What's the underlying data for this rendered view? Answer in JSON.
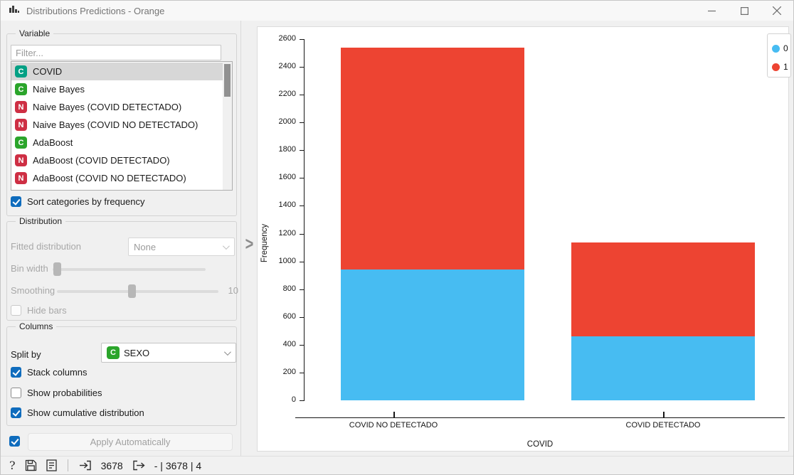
{
  "window": {
    "title": "Distributions Predictions - Orange"
  },
  "variable_panel": {
    "group_title": "Variable",
    "filter_placeholder": "Filter...",
    "items": [
      {
        "icon": "C",
        "icon_color": "#03a084",
        "label": "COVID",
        "selected": true
      },
      {
        "icon": "C",
        "icon_color": "#2ba52b",
        "label": "Naive Bayes",
        "selected": false
      },
      {
        "icon": "N",
        "icon_color": "#ce2f44",
        "label": "Naive Bayes (COVID DETECTADO)",
        "selected": false
      },
      {
        "icon": "N",
        "icon_color": "#ce2f44",
        "label": "Naive Bayes (COVID NO DETECTADO)",
        "selected": false
      },
      {
        "icon": "C",
        "icon_color": "#2ba52b",
        "label": "AdaBoost",
        "selected": false
      },
      {
        "icon": "N",
        "icon_color": "#ce2f44",
        "label": "AdaBoost (COVID DETECTADO)",
        "selected": false
      },
      {
        "icon": "N",
        "icon_color": "#ce2f44",
        "label": "AdaBoost (COVID NO DETECTADO)",
        "selected": false
      }
    ],
    "sort_checkbox": {
      "label": "Sort categories by frequency",
      "checked": true
    }
  },
  "distribution_panel": {
    "group_title": "Distribution",
    "fitted_label": "Fitted distribution",
    "fitted_value": "None",
    "bin_width_label": "Bin width",
    "smoothing_label": "Smoothing",
    "smoothing_value": "10",
    "hide_bars": {
      "label": "Hide bars",
      "checked": false
    }
  },
  "columns_panel": {
    "group_title": "Columns",
    "split_by_label": "Split by",
    "split_by_icon": "C",
    "split_by_icon_color": "#2ba52b",
    "split_by_value": "SEXO",
    "checkboxes": [
      {
        "label": "Stack columns",
        "checked": true
      },
      {
        "label": "Show probabilities",
        "checked": false
      },
      {
        "label": "Show cumulative distribution",
        "checked": true
      }
    ]
  },
  "apply": {
    "label": "Apply Automatically",
    "checked": true
  },
  "splitter": {
    "glyph": ">"
  },
  "status_bar": {
    "help_glyph": "?",
    "input_count": "3678",
    "output_summary": "- | 3678 | 4"
  },
  "chart_data": {
    "type": "bar",
    "stacked": true,
    "categories": [
      "COVID NO DETECTADO",
      "COVID DETECTADO"
    ],
    "series": [
      {
        "name": "0",
        "color": "#47bcf2",
        "values": [
          940,
          460
        ]
      },
      {
        "name": "1",
        "color": "#ed4432",
        "values": [
          1600,
          675
        ]
      }
    ],
    "totals": [
      2540,
      1135
    ],
    "title": "",
    "xlabel": "COVID",
    "ylabel": "Frequency",
    "ylim": [
      0,
      2600
    ],
    "ytick_step": 200,
    "grid": false,
    "legend_position": "top-right"
  }
}
